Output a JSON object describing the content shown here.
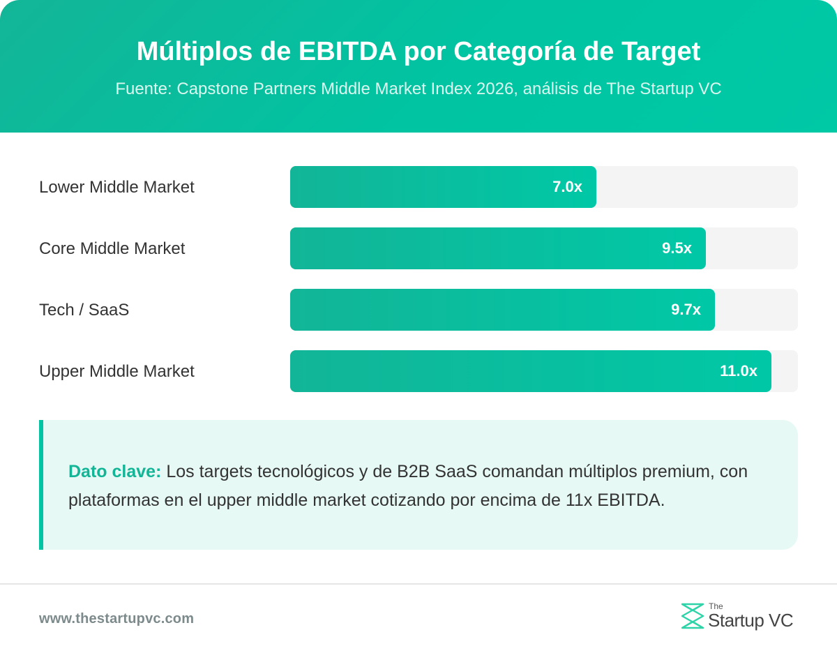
{
  "header": {
    "title": "Múltiplos de EBITDA por Categoría de Target",
    "subtitle": "Fuente: Capstone Partners Middle Market Index 2026, análisis de The Startup VC"
  },
  "chart_data": {
    "type": "bar",
    "orientation": "horizontal",
    "categories": [
      "Lower Middle Market",
      "Core Middle Market",
      "Tech / SaaS",
      "Upper Middle Market"
    ],
    "values": [
      7.0,
      9.5,
      9.7,
      11.0
    ],
    "value_labels": [
      "7.0x",
      "9.5x",
      "9.7x",
      "11.0x"
    ],
    "title": "Múltiplos de EBITDA por Categoría de Target",
    "xlim": [
      0,
      11.6
    ],
    "grid": false,
    "legend": "none",
    "bar_color": "#00c4a2",
    "track_color": "#f4f4f4"
  },
  "insight": {
    "label": "Dato clave:",
    "text": " Los targets tecnológicos y de B2B SaaS comandan múltiplos premium, con plataformas en el upper middle market cotizando por encima de 11x EBITDA."
  },
  "footer": {
    "url": "www.thestartupvc.com",
    "logo_the": "The",
    "logo_name": "Startup VC",
    "logo_icon": "startupvc-logo-icon"
  },
  "colors": {
    "accent": "#00c4a2",
    "accent_dark": "#13b597",
    "insight_bg": "#e6f9f4"
  }
}
